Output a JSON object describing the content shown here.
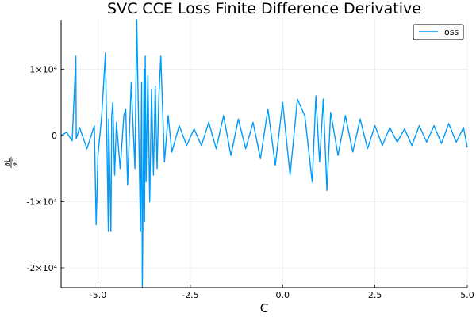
{
  "chart_data": {
    "type": "line",
    "title": "SVC CCE Loss Finite Difference Derivative",
    "xlabel": "C",
    "ylabel_num": "∂L",
    "ylabel_den": "∂C",
    "xlim": [
      -6,
      5
    ],
    "ylim": [
      -23000,
      17500
    ],
    "x_ticks": [
      -5,
      -2.5,
      0,
      2.5,
      5
    ],
    "x_tick_labels": [
      "-5.0",
      "-2.5",
      "0.0",
      "2.5",
      "5.0"
    ],
    "y_ticks": [
      10000,
      0,
      -10000,
      -20000
    ],
    "y_tick_labels": [
      "1×10⁴",
      "0",
      "-1×10⁴",
      "-2×10⁴"
    ],
    "grid": true,
    "legend_position": "top-right",
    "series": [
      {
        "name": "loss",
        "color": "#009AF9",
        "x": [
          -6.0,
          -5.85,
          -5.7,
          -5.6,
          -5.59,
          -5.5,
          -5.3,
          -5.1,
          -5.05,
          -5.0,
          -4.9,
          -4.8,
          -4.72,
          -4.71,
          -4.65,
          -4.63,
          -4.6,
          -4.55,
          -4.5,
          -4.4,
          -4.3,
          -4.25,
          -4.2,
          -4.1,
          -4.0,
          -3.95,
          -3.85,
          -3.82,
          -3.8,
          -3.75,
          -3.74,
          -3.72,
          -3.7,
          -3.65,
          -3.6,
          -3.55,
          -3.5,
          -3.45,
          -3.4,
          -3.35,
          -3.3,
          -3.2,
          -3.1,
          -3.0,
          -2.8,
          -2.6,
          -2.4,
          -2.2,
          -2.0,
          -1.8,
          -1.6,
          -1.4,
          -1.2,
          -1.0,
          -0.8,
          -0.6,
          -0.4,
          -0.2,
          0.0,
          0.2,
          0.4,
          0.6,
          0.8,
          0.9,
          1.0,
          1.1,
          1.2,
          1.3,
          1.5,
          1.7,
          1.9,
          2.1,
          2.3,
          2.5,
          2.7,
          2.9,
          3.1,
          3.3,
          3.5,
          3.7,
          3.9,
          4.1,
          4.3,
          4.5,
          4.7,
          4.9,
          5.0
        ],
        "y": [
          0,
          500,
          -800,
          12000,
          -500,
          1200,
          -2000,
          1500,
          -13500,
          -3000,
          3000,
          12500,
          -14500,
          2500,
          -14500,
          3000,
          5000,
          -6000,
          2000,
          -5000,
          3000,
          4000,
          -7500,
          8000,
          -5000,
          17500,
          -14500,
          8000,
          -23000,
          10000,
          -13000,
          12000,
          -7000,
          9000,
          -10000,
          7000,
          -6000,
          7500,
          -5000,
          6000,
          12000,
          -4000,
          3000,
          -2500,
          1500,
          -1500,
          1000,
          -1500,
          2000,
          -2000,
          3000,
          -3000,
          2500,
          -2000,
          2000,
          -3500,
          4000,
          -4500,
          5000,
          -6000,
          5500,
          3000,
          -7000,
          6000,
          -4000,
          5500,
          -8300,
          3500,
          -3000,
          3000,
          -2500,
          2500,
          -2000,
          1500,
          -1500,
          1200,
          -1000,
          1000,
          -1500,
          1500,
          -1000,
          1500,
          -1200,
          1800,
          -1000,
          1200,
          -1800
        ]
      }
    ]
  }
}
